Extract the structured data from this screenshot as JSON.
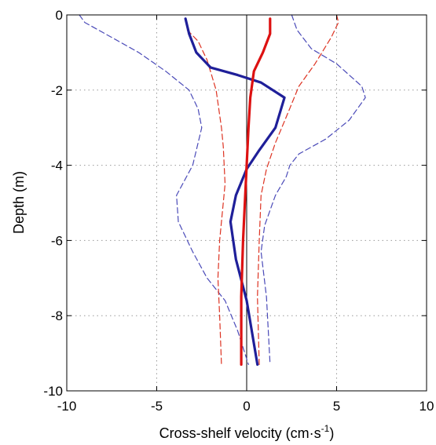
{
  "chart_data": {
    "type": "line",
    "title": "",
    "xlabel": "Cross-shelf velocity (cm·s",
    "xlabel_sup": "-1",
    "xlabel_close": ")",
    "ylabel": "Depth (m)",
    "xlim": [
      -10,
      10
    ],
    "ylim": [
      -10,
      0
    ],
    "xticks": [
      "-10",
      "-5",
      "0",
      "5",
      "10"
    ],
    "yticks": [
      "0",
      "-2",
      "-4",
      "-6",
      "-8",
      "-10"
    ],
    "grid": true,
    "legend": "none",
    "zero_line": 0,
    "series": [
      {
        "color": "#1f1f99",
        "style": "solid",
        "width": 3.2,
        "points": [
          [
            -3.4,
            -0.1
          ],
          [
            -3.2,
            -0.5
          ],
          [
            -2.8,
            -1.0
          ],
          [
            -2.0,
            -1.4
          ],
          [
            -0.5,
            -1.6
          ],
          [
            0.8,
            -1.8
          ],
          [
            2.1,
            -2.2
          ],
          [
            1.6,
            -3.0
          ],
          [
            0.7,
            -3.6
          ],
          [
            0.0,
            -4.1
          ],
          [
            -0.6,
            -4.8
          ],
          [
            -0.9,
            -5.5
          ],
          [
            -0.6,
            -6.5
          ],
          [
            0.0,
            -7.6
          ],
          [
            0.6,
            -9.3
          ]
        ]
      },
      {
        "color": "#dd1111",
        "style": "solid",
        "width": 3.2,
        "points": [
          [
            1.3,
            -0.1
          ],
          [
            1.3,
            -0.5
          ],
          [
            0.9,
            -1.0
          ],
          [
            0.4,
            -1.5
          ],
          [
            0.2,
            -2.2
          ],
          [
            0.1,
            -3.0
          ],
          [
            0.0,
            -4.0
          ],
          [
            -0.1,
            -5.0
          ],
          [
            -0.2,
            -6.0
          ],
          [
            -0.3,
            -7.5
          ],
          [
            -0.3,
            -9.3
          ]
        ]
      },
      {
        "color": "#4a4ab8",
        "style": "dashed",
        "width": 1.2,
        "points": [
          [
            -9.3,
            0.0
          ],
          [
            -9.0,
            -0.2
          ],
          [
            -7.5,
            -0.6
          ],
          [
            -6.0,
            -1.0
          ],
          [
            -4.5,
            -1.5
          ],
          [
            -3.2,
            -2.0
          ],
          [
            -2.7,
            -2.5
          ],
          [
            -2.5,
            -3.0
          ],
          [
            -3.0,
            -4.0
          ],
          [
            -3.9,
            -4.8
          ],
          [
            -3.8,
            -5.5
          ],
          [
            -3.0,
            -6.3
          ],
          [
            -2.2,
            -7.0
          ],
          [
            -1.2,
            -7.6
          ],
          [
            -0.5,
            -8.4
          ],
          [
            0.1,
            -9.3
          ]
        ]
      },
      {
        "color": "#4a4ab8",
        "style": "dashed",
        "width": 1.2,
        "points": [
          [
            2.5,
            0.0
          ],
          [
            2.8,
            -0.4
          ],
          [
            3.6,
            -0.9
          ],
          [
            5.0,
            -1.3
          ],
          [
            6.4,
            -1.9
          ],
          [
            6.6,
            -2.2
          ],
          [
            5.7,
            -2.8
          ],
          [
            4.4,
            -3.3
          ],
          [
            2.9,
            -3.7
          ],
          [
            2.4,
            -4.0
          ],
          [
            2.2,
            -4.3
          ],
          [
            1.6,
            -4.8
          ],
          [
            1.0,
            -5.6
          ],
          [
            0.8,
            -6.3
          ],
          [
            1.1,
            -7.5
          ],
          [
            1.3,
            -9.3
          ]
        ]
      },
      {
        "color": "#dd3322",
        "style": "dashed",
        "width": 1.2,
        "points": [
          [
            -3.3,
            -0.4
          ],
          [
            -2.7,
            -0.7
          ],
          [
            -2.2,
            -1.2
          ],
          [
            -1.7,
            -2.0
          ],
          [
            -1.4,
            -3.0
          ],
          [
            -1.3,
            -3.5
          ],
          [
            -1.2,
            -4.5
          ],
          [
            -1.5,
            -6.0
          ],
          [
            -1.6,
            -7.0
          ],
          [
            -1.5,
            -8.0
          ],
          [
            -1.4,
            -9.3
          ]
        ]
      },
      {
        "color": "#dd3322",
        "style": "dashed",
        "width": 1.2,
        "points": [
          [
            5.0,
            0.0
          ],
          [
            5.1,
            -0.2
          ],
          [
            4.7,
            -0.6
          ],
          [
            3.8,
            -1.3
          ],
          [
            2.9,
            -1.9
          ],
          [
            2.3,
            -2.6
          ],
          [
            1.6,
            -3.4
          ],
          [
            1.1,
            -4.1
          ],
          [
            0.8,
            -4.8
          ],
          [
            0.7,
            -6.0
          ],
          [
            0.6,
            -7.5
          ],
          [
            0.7,
            -9.3
          ]
        ]
      }
    ]
  }
}
